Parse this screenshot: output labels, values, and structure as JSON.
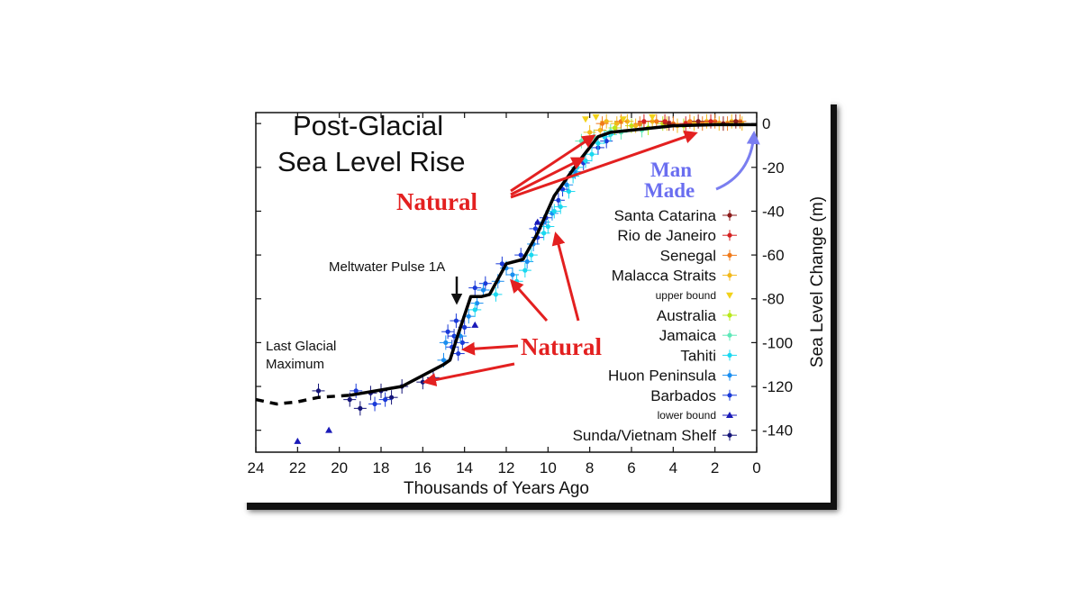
{
  "chart_data": {
    "type": "scatter",
    "title": [
      "Post-Glacial",
      "Sea Level Rise"
    ],
    "xlabel": "Thousands of Years Ago",
    "ylabel": "Sea Level Change (m)",
    "xlim": [
      24,
      0
    ],
    "ylim": [
      -150,
      5
    ],
    "x_ticks": [
      24,
      22,
      20,
      18,
      16,
      14,
      12,
      10,
      8,
      6,
      4,
      2,
      0
    ],
    "y_ticks": [
      0,
      -20,
      -40,
      -60,
      -80,
      -100,
      -120,
      -140
    ],
    "legend_position": "right",
    "legend": [
      {
        "label": "Santa Catarina",
        "color": "#8b1a1a",
        "marker": "dot"
      },
      {
        "label": "Rio de Janeiro",
        "color": "#d42020",
        "marker": "dot"
      },
      {
        "label": "Senegal",
        "color": "#f07a1a",
        "marker": "dot"
      },
      {
        "label": "Malacca Straits",
        "color": "#f2b81a",
        "marker": "dot"
      },
      {
        "label": "upper bound",
        "color": "#f2d21a",
        "marker": "triangle-down",
        "small": true
      },
      {
        "label": "Australia",
        "color": "#b8e81a",
        "marker": "dot"
      },
      {
        "label": "Jamaica",
        "color": "#5ee8b8",
        "marker": "dot"
      },
      {
        "label": "Tahiti",
        "color": "#1ad8f0",
        "marker": "dot"
      },
      {
        "label": "Huon Peninsula",
        "color": "#1a8ef0",
        "marker": "dot"
      },
      {
        "label": "Barbados",
        "color": "#1a3ad8",
        "marker": "dot"
      },
      {
        "label": "lower bound",
        "color": "#1a1ab8",
        "marker": "triangle-up",
        "small": true
      },
      {
        "label": "Sunda/Vietnam Shelf",
        "color": "#141478",
        "marker": "dot"
      }
    ],
    "trend_line": {
      "color": "#000000",
      "solid": [
        [
          19.5,
          -124
        ],
        [
          17,
          -120
        ],
        [
          15,
          -110
        ],
        [
          14.7,
          -108
        ],
        [
          14.3,
          -96
        ],
        [
          13.7,
          -79
        ],
        [
          13.2,
          -79
        ],
        [
          12.8,
          -78
        ],
        [
          12,
          -64
        ],
        [
          11.2,
          -62
        ],
        [
          10.5,
          -50
        ],
        [
          9.7,
          -33
        ],
        [
          8.5,
          -17
        ],
        [
          7.6,
          -6
        ],
        [
          7,
          -4
        ],
        [
          6,
          -3
        ],
        [
          4,
          -1
        ],
        [
          2,
          -0.5
        ],
        [
          0,
          -0.5
        ]
      ],
      "dashed": [
        [
          24,
          -126
        ],
        [
          23,
          -128
        ],
        [
          22,
          -127
        ],
        [
          21,
          -125
        ],
        [
          19.5,
          -124
        ]
      ]
    },
    "series": [
      {
        "name": "Sunda/Vietnam Shelf",
        "color": "#141478",
        "points": [
          [
            21,
            -122
          ],
          [
            19.5,
            -126
          ],
          [
            19,
            -130
          ],
          [
            18.5,
            -123
          ],
          [
            18,
            -122
          ],
          [
            17.5,
            -125
          ],
          [
            17,
            -120
          ],
          [
            16,
            -118
          ],
          [
            15.5,
            -116
          ]
        ]
      },
      {
        "name": "Barbados",
        "color": "#1a3ad8",
        "points": [
          [
            19.2,
            -122
          ],
          [
            18.3,
            -128
          ],
          [
            17.8,
            -126
          ],
          [
            14.8,
            -95
          ],
          [
            14.6,
            -102
          ],
          [
            14.5,
            -97
          ],
          [
            14.4,
            -90
          ],
          [
            14.3,
            -105
          ],
          [
            14.1,
            -100
          ],
          [
            14,
            -93
          ],
          [
            13.5,
            -75
          ],
          [
            13,
            -73
          ],
          [
            12.2,
            -64
          ],
          [
            11.3,
            -60
          ],
          [
            10.6,
            -48
          ],
          [
            10.5,
            -52
          ],
          [
            10.1,
            -43
          ],
          [
            9.5,
            -35
          ],
          [
            9.3,
            -30
          ],
          [
            8.3,
            -18
          ],
          [
            7.6,
            -11
          ],
          [
            7.2,
            -8
          ]
        ]
      },
      {
        "name": "Huon Peninsula",
        "color": "#1a8ef0",
        "points": [
          [
            15,
            -108
          ],
          [
            14.9,
            -100
          ],
          [
            14.2,
            -97
          ],
          [
            13.8,
            -88
          ],
          [
            13.4,
            -82
          ],
          [
            13.1,
            -76
          ],
          [
            12.4,
            -72
          ],
          [
            12,
            -66
          ],
          [
            11.7,
            -69
          ],
          [
            11,
            -63
          ],
          [
            10.7,
            -55
          ],
          [
            10.2,
            -45
          ],
          [
            9.8,
            -41
          ],
          [
            9.1,
            -28
          ],
          [
            8.7,
            -22
          ]
        ]
      },
      {
        "name": "Tahiti",
        "color": "#1ad8f0",
        "points": [
          [
            13.5,
            -85
          ],
          [
            12.5,
            -78
          ],
          [
            11.5,
            -72
          ],
          [
            11.1,
            -67
          ],
          [
            10.8,
            -60
          ],
          [
            10.2,
            -50
          ],
          [
            10,
            -47
          ],
          [
            9.7,
            -40
          ],
          [
            9.4,
            -38
          ],
          [
            9,
            -31
          ],
          [
            8.8,
            -24
          ],
          [
            8.6,
            -20
          ],
          [
            8.2,
            -17
          ],
          [
            7.9,
            -14
          ],
          [
            7.6,
            -9
          ],
          [
            7.3,
            -6
          ],
          [
            7,
            -5
          ]
        ]
      },
      {
        "name": "Jamaica",
        "color": "#5ee8b8",
        "points": [
          [
            8.4,
            -8
          ],
          [
            7.8,
            -6
          ],
          [
            7,
            -3.5
          ],
          [
            6.5,
            -4
          ],
          [
            5.5,
            -3
          ]
        ]
      },
      {
        "name": "Australia",
        "color": "#b8e81a",
        "points": [
          [
            6.8,
            -2
          ],
          [
            6,
            -1
          ],
          [
            5.2,
            -2
          ],
          [
            4.5,
            0
          ],
          [
            3.5,
            -1
          ]
        ]
      },
      {
        "name": "Malacca Straits",
        "color": "#f2b81a",
        "points": [
          [
            8,
            -4
          ],
          [
            7.5,
            -3
          ],
          [
            7.2,
            1
          ],
          [
            6.7,
            0
          ],
          [
            6.2,
            1
          ],
          [
            5.8,
            -1
          ],
          [
            5,
            1
          ],
          [
            4.3,
            0
          ],
          [
            3.8,
            -1
          ],
          [
            3,
            0
          ],
          [
            2.4,
            1
          ],
          [
            1.8,
            0
          ],
          [
            1.2,
            1
          ],
          [
            0.7,
            0
          ]
        ]
      },
      {
        "name": "Senegal",
        "color": "#f07a1a",
        "points": [
          [
            7.4,
            0
          ],
          [
            6.5,
            1
          ],
          [
            5.6,
            0
          ],
          [
            4.8,
            1
          ],
          [
            4,
            0
          ],
          [
            3.2,
            1
          ],
          [
            2.6,
            0
          ],
          [
            2,
            1
          ],
          [
            1.4,
            0
          ],
          [
            0.8,
            1
          ]
        ]
      },
      {
        "name": "Rio de Janeiro",
        "color": "#d42020",
        "points": [
          [
            5.4,
            1
          ],
          [
            4.4,
            1
          ],
          [
            3.4,
            0
          ],
          [
            2.2,
            1
          ]
        ]
      },
      {
        "name": "Santa Catarina",
        "color": "#8b1a1a",
        "points": [
          [
            4.2,
            0
          ],
          [
            2.8,
            1
          ],
          [
            1.6,
            0
          ],
          [
            1,
            1
          ]
        ]
      },
      {
        "name": "upper bound",
        "color": "#f2d21a",
        "marker": "triangle-down",
        "points": [
          [
            8.2,
            2
          ],
          [
            7.7,
            3
          ],
          [
            6.4,
            2
          ],
          [
            5,
            3
          ]
        ]
      },
      {
        "name": "lower bound",
        "color": "#1a1ab8",
        "marker": "triangle-up",
        "points": [
          [
            22,
            -145
          ],
          [
            20.5,
            -140
          ],
          [
            13.5,
            -92
          ],
          [
            10.5,
            -45
          ]
        ]
      }
    ],
    "annotations": [
      {
        "text": [
          "Last Glacial",
          "Maximum"
        ]
      },
      {
        "text": "Meltwater Pulse 1A"
      },
      {
        "text": "Natural"
      },
      {
        "text": "Natural"
      },
      {
        "text": [
          "Man",
          "Made"
        ]
      }
    ]
  }
}
